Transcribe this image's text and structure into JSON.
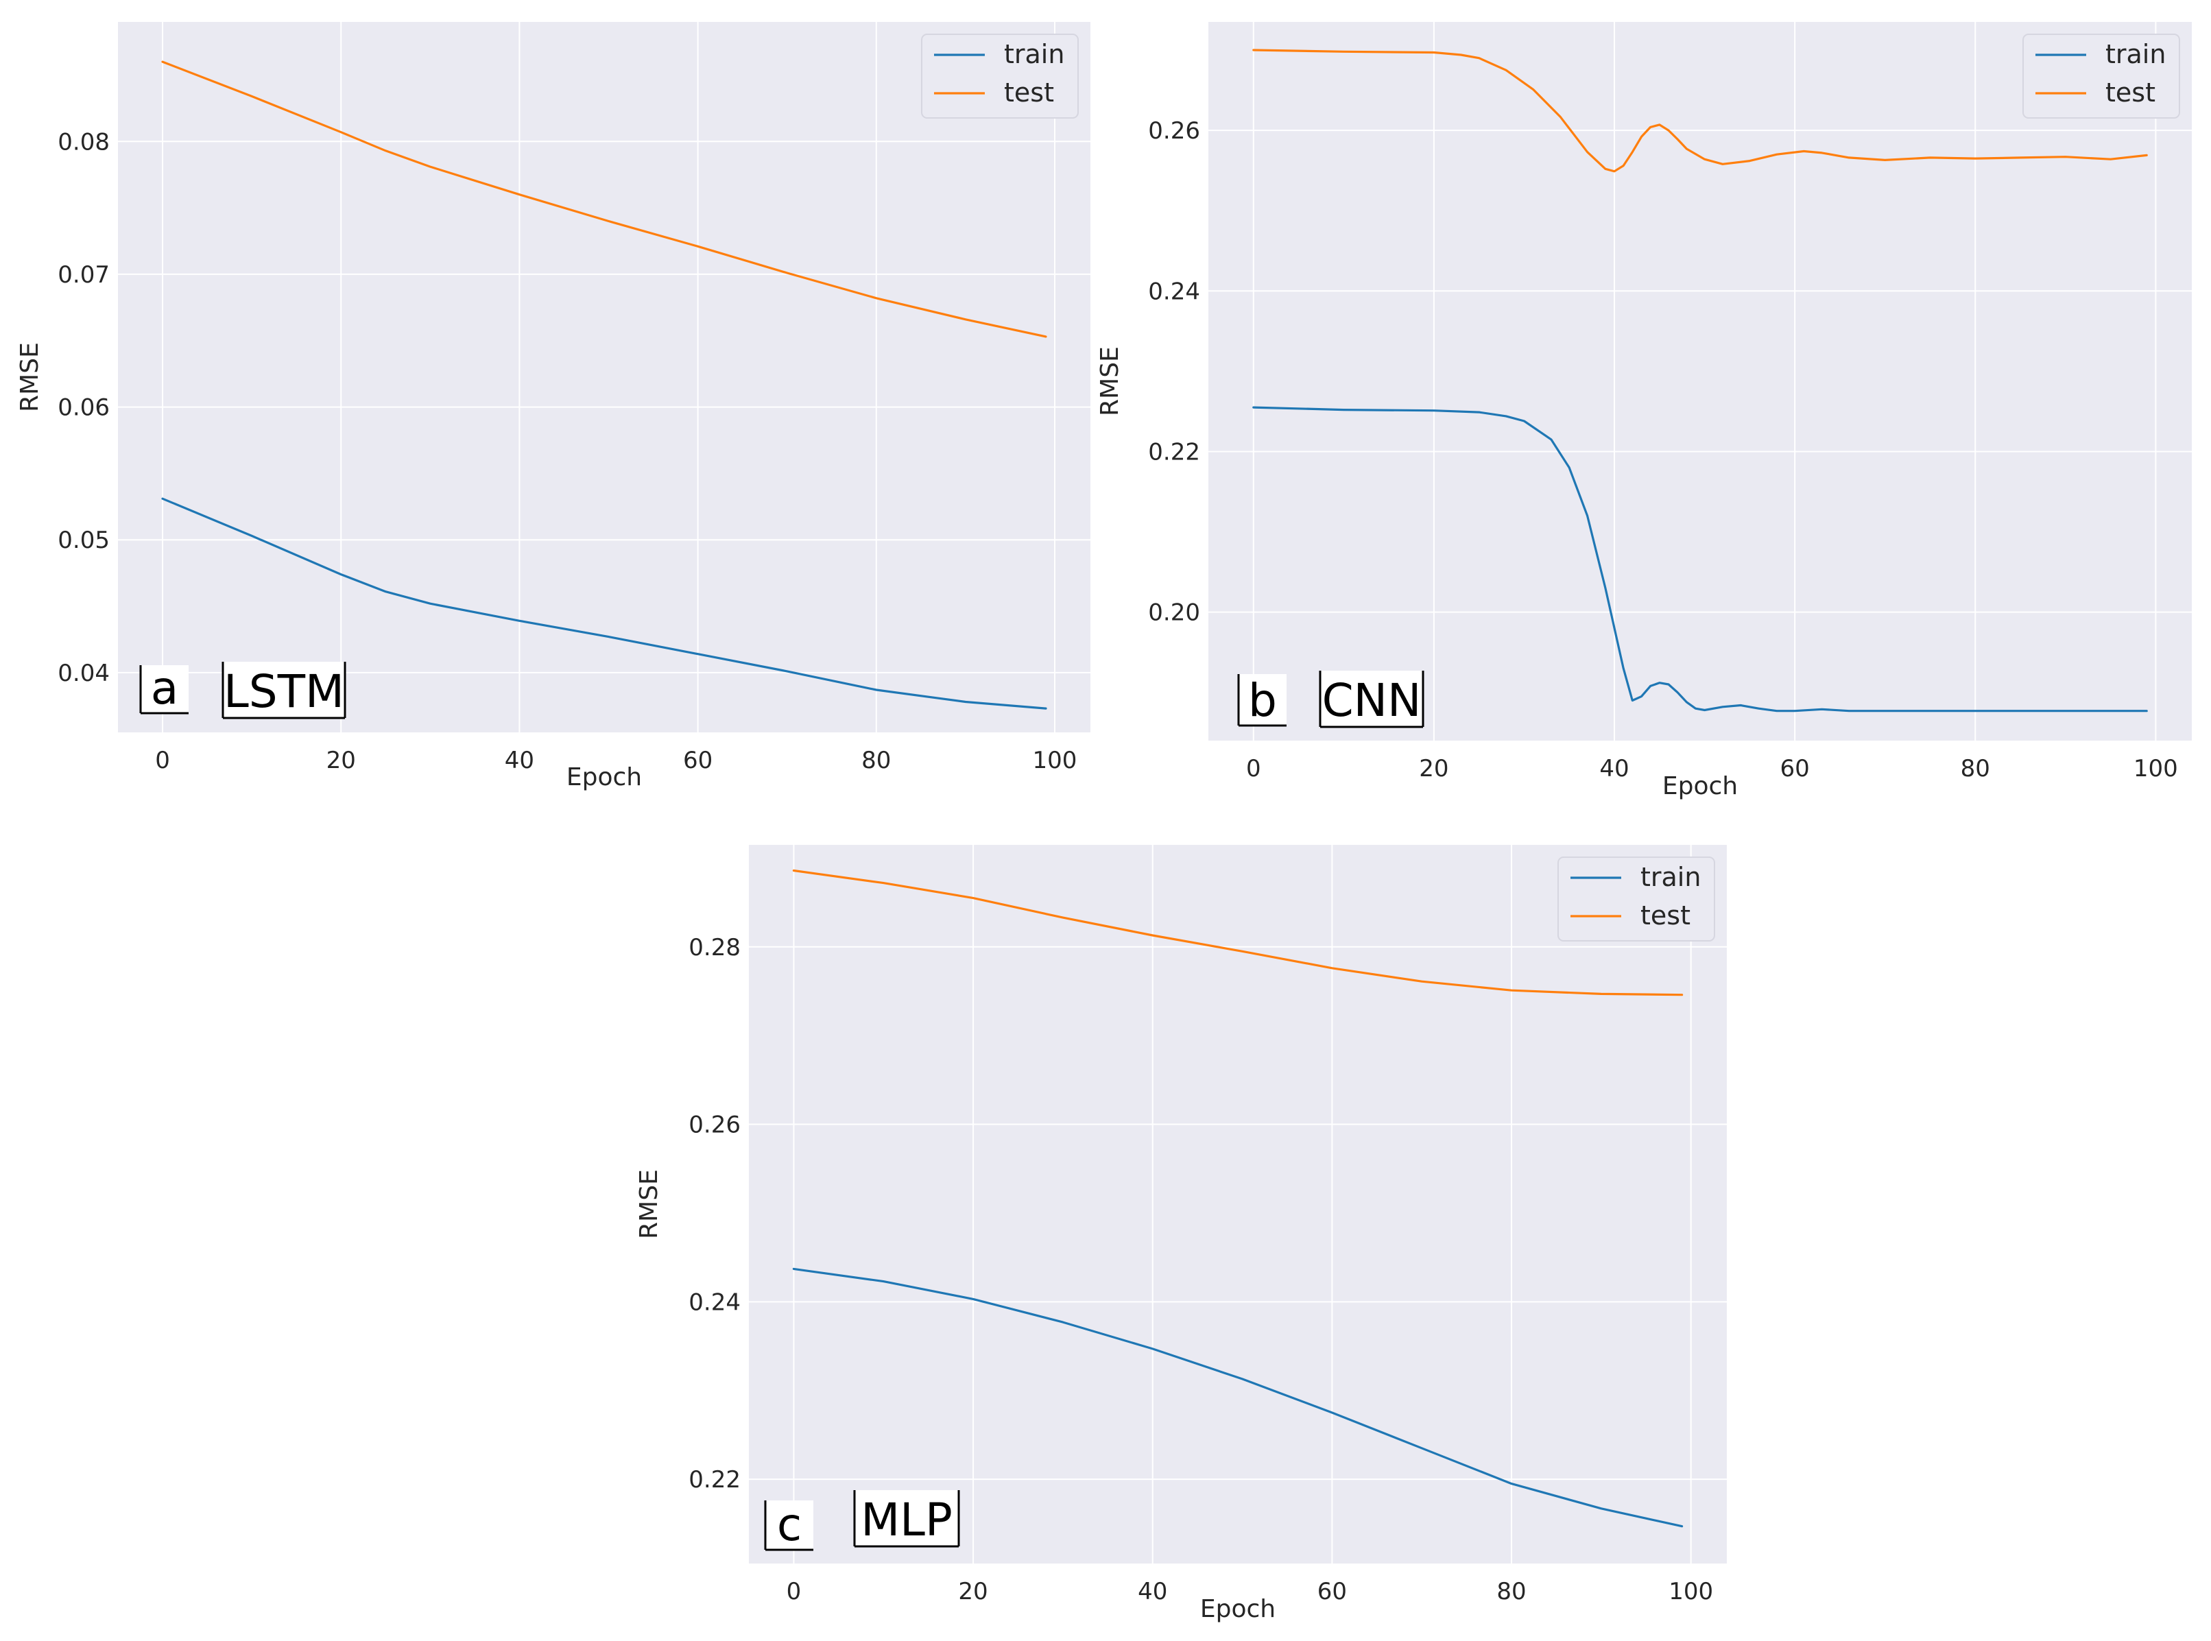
{
  "chart_data": [
    {
      "id": "a",
      "type": "line",
      "panel_letter": "a",
      "model_label": "LSTM",
      "xlabel": "Epoch",
      "ylabel": "RMSE",
      "xlim": [
        -5,
        104
      ],
      "ylim": [
        0.0355,
        0.089
      ],
      "xticks": [
        0,
        20,
        40,
        60,
        80,
        100
      ],
      "yticks": [
        0.04,
        0.05,
        0.06,
        0.07,
        0.08
      ],
      "ytick_labels": [
        "0.04",
        "0.05",
        "0.06",
        "0.07",
        "0.08"
      ],
      "grid": true,
      "legend_position": "top-right",
      "series": [
        {
          "name": "train",
          "color": "#1f77b4",
          "x": [
            0,
            10,
            20,
            25,
            30,
            40,
            50,
            60,
            70,
            80,
            90,
            99
          ],
          "values": [
            0.0531,
            0.0503,
            0.0474,
            0.0461,
            0.0452,
            0.0439,
            0.0427,
            0.0414,
            0.0401,
            0.0387,
            0.0378,
            0.0373
          ]
        },
        {
          "name": "test",
          "color": "#ff7f0e",
          "x": [
            0,
            10,
            20,
            25,
            30,
            40,
            50,
            60,
            70,
            80,
            90,
            99
          ],
          "values": [
            0.086,
            0.0834,
            0.0807,
            0.0793,
            0.0781,
            0.076,
            0.074,
            0.0721,
            0.0701,
            0.0682,
            0.0666,
            0.0653
          ]
        }
      ]
    },
    {
      "id": "b",
      "type": "line",
      "panel_letter": "b",
      "model_label": "CNN",
      "xlabel": "Epoch",
      "ylabel": "RMSE",
      "xlim": [
        -5,
        104
      ],
      "ylim": [
        0.184,
        0.2735
      ],
      "xticks": [
        0,
        20,
        40,
        60,
        80,
        100
      ],
      "yticks": [
        0.2,
        0.22,
        0.24,
        0.26
      ],
      "ytick_labels": [
        "0.20",
        "0.22",
        "0.24",
        "0.26"
      ],
      "grid": true,
      "legend_position": "top-right",
      "series": [
        {
          "name": "train",
          "color": "#1f77b4",
          "x": [
            0,
            10,
            20,
            25,
            28,
            30,
            33,
            35,
            37,
            39,
            41,
            42,
            43,
            44,
            45,
            46,
            47,
            48,
            49,
            50,
            52,
            54,
            56,
            58,
            60,
            63,
            66,
            70,
            80,
            90,
            99
          ],
          "values": [
            0.2255,
            0.2252,
            0.2251,
            0.2249,
            0.2244,
            0.2238,
            0.2215,
            0.218,
            0.212,
            0.203,
            0.193,
            0.189,
            0.1895,
            0.1908,
            0.1912,
            0.191,
            0.19,
            0.1888,
            0.188,
            0.1878,
            0.1882,
            0.1884,
            0.188,
            0.1877,
            0.1877,
            0.1879,
            0.1877,
            0.1877,
            0.1877,
            0.1877,
            0.1877
          ]
        },
        {
          "name": "test",
          "color": "#ff7f0e",
          "x": [
            0,
            10,
            20,
            23,
            25,
            28,
            31,
            34,
            37,
            39,
            40,
            41,
            42,
            43,
            44,
            45,
            46,
            47,
            48,
            50,
            52,
            55,
            58,
            61,
            63,
            66,
            70,
            75,
            80,
            85,
            90,
            95,
            99
          ],
          "values": [
            0.27,
            0.2698,
            0.2697,
            0.2694,
            0.269,
            0.2675,
            0.2651,
            0.2617,
            0.2573,
            0.2552,
            0.2549,
            0.2556,
            0.2573,
            0.2592,
            0.2604,
            0.2607,
            0.26,
            0.2589,
            0.2577,
            0.2564,
            0.2558,
            0.2562,
            0.257,
            0.2574,
            0.2572,
            0.2566,
            0.2563,
            0.2566,
            0.2565,
            0.2566,
            0.2567,
            0.2564,
            0.2569
          ]
        }
      ]
    },
    {
      "id": "c",
      "type": "line",
      "panel_letter": "c",
      "model_label": "MLP",
      "xlabel": "Epoch",
      "ylabel": "RMSE",
      "xlim": [
        -5,
        104
      ],
      "ylim": [
        0.2105,
        0.2915
      ],
      "xticks": [
        0,
        20,
        40,
        60,
        80,
        100
      ],
      "yticks": [
        0.22,
        0.24,
        0.26,
        0.28
      ],
      "ytick_labels": [
        "0.22",
        "0.24",
        "0.26",
        "0.28"
      ],
      "grid": true,
      "legend_position": "top-right",
      "series": [
        {
          "name": "train",
          "color": "#1f77b4",
          "x": [
            0,
            10,
            20,
            30,
            40,
            50,
            60,
            70,
            80,
            90,
            99
          ],
          "values": [
            0.2437,
            0.2423,
            0.2403,
            0.2377,
            0.2347,
            0.2313,
            0.2275,
            0.2235,
            0.2195,
            0.2167,
            0.2147
          ]
        },
        {
          "name": "test",
          "color": "#ff7f0e",
          "x": [
            0,
            10,
            20,
            30,
            40,
            50,
            60,
            70,
            80,
            90,
            99
          ],
          "values": [
            0.2886,
            0.2872,
            0.2855,
            0.2833,
            0.2813,
            0.2795,
            0.2776,
            0.2761,
            0.2751,
            0.2747,
            0.2746
          ]
        }
      ]
    }
  ]
}
